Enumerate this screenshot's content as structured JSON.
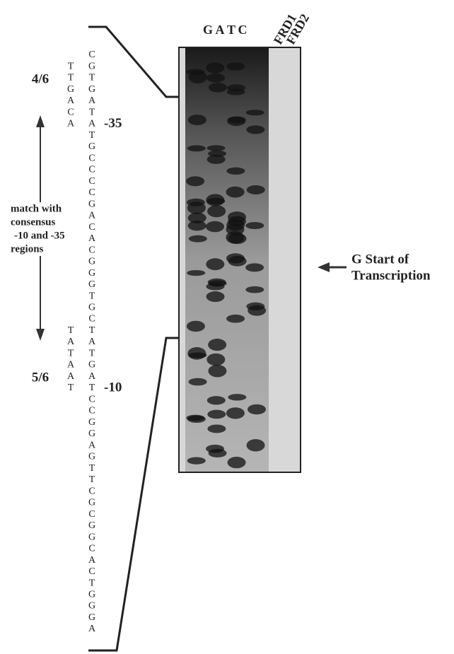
{
  "lanes": [
    "G",
    "A",
    "T",
    "C",
    "FRD1",
    "FRD2"
  ],
  "sequence": [
    "C",
    "G",
    "T",
    "G",
    "A",
    "T",
    "A",
    "T",
    "G",
    "C",
    "C",
    "C",
    "C",
    "G",
    "A",
    "C",
    "A",
    "C",
    "G",
    "G",
    "G",
    "T",
    "G",
    "C",
    "T",
    "A",
    "T",
    "G",
    "A",
    "T",
    "C",
    "C",
    "G",
    "G",
    "A",
    "G",
    "T",
    "T",
    "C",
    "G",
    "C",
    "G",
    "G",
    "C",
    "A",
    "C",
    "T",
    "G",
    "G",
    "G",
    "A"
  ],
  "consensus_35": [
    "T",
    "T",
    "G",
    "A",
    "C",
    "A"
  ],
  "consensus_10": [
    "T",
    "A",
    "T",
    "A",
    "A",
    "T"
  ],
  "labels": {
    "minus35": "-35",
    "minus10": "-10",
    "match_35": "4/6",
    "match_10": "5/6",
    "match_text": [
      "match with",
      "consensus",
      "-10 and -35",
      "regions"
    ],
    "start": [
      "G Start of",
      "Transcription"
    ]
  }
}
